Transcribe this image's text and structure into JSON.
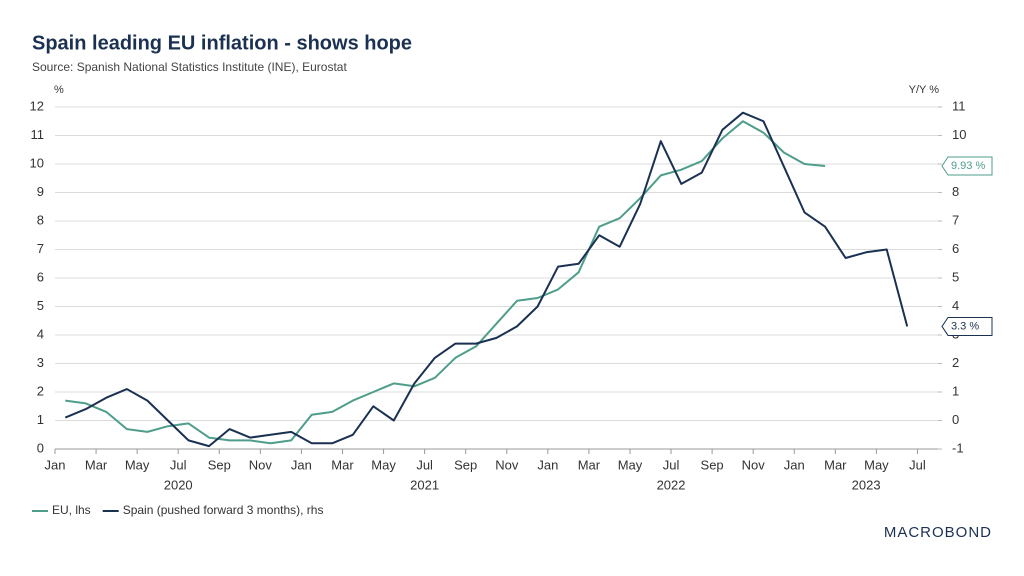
{
  "chart_data": {
    "type": "line",
    "title": "Spain leading EU inflation - shows hope",
    "subtitle": "Source: Spanish National Statistics Institute (INE), Eurostat",
    "y_label": "%",
    "y2_label": "Y/Y %",
    "x": [
      "2020-01",
      "2020-02",
      "2020-03",
      "2020-04",
      "2020-05",
      "2020-06",
      "2020-07",
      "2020-08",
      "2020-09",
      "2020-10",
      "2020-11",
      "2020-12",
      "2021-01",
      "2021-02",
      "2021-03",
      "2021-04",
      "2021-05",
      "2021-06",
      "2021-07",
      "2021-08",
      "2021-09",
      "2021-10",
      "2021-11",
      "2021-12",
      "2022-01",
      "2022-02",
      "2022-03",
      "2022-04",
      "2022-05",
      "2022-06",
      "2022-07",
      "2022-08",
      "2022-09",
      "2022-10",
      "2022-11",
      "2022-12",
      "2023-01",
      "2023-02",
      "2023-03",
      "2023-04",
      "2023-05",
      "2023-06"
    ],
    "xlim": [
      "2020-01",
      "2023-08"
    ],
    "xticks": [
      {
        "value": "2020-01",
        "label": "Jan"
      },
      {
        "value": "2020-03",
        "label": "Mar"
      },
      {
        "value": "2020-05",
        "label": "May"
      },
      {
        "value": "2020-07",
        "label": "Jul"
      },
      {
        "value": "2020-09",
        "label": "Sep"
      },
      {
        "value": "2020-11",
        "label": "Nov"
      },
      {
        "value": "2021-01",
        "label": "Jan"
      },
      {
        "value": "2021-03",
        "label": "Mar"
      },
      {
        "value": "2021-05",
        "label": "May"
      },
      {
        "value": "2021-07",
        "label": "Jul"
      },
      {
        "value": "2021-09",
        "label": "Sep"
      },
      {
        "value": "2021-11",
        "label": "Nov"
      },
      {
        "value": "2022-01",
        "label": "Jan"
      },
      {
        "value": "2022-03",
        "label": "Mar"
      },
      {
        "value": "2022-05",
        "label": "May"
      },
      {
        "value": "2022-07",
        "label": "Jul"
      },
      {
        "value": "2022-09",
        "label": "Sep"
      },
      {
        "value": "2022-11",
        "label": "Nov"
      },
      {
        "value": "2023-01",
        "label": "Jan"
      },
      {
        "value": "2023-03",
        "label": "Mar"
      },
      {
        "value": "2023-05",
        "label": "May"
      },
      {
        "value": "2023-07",
        "label": "Jul"
      }
    ],
    "years": [
      "2020",
      "2021",
      "2022",
      "2023"
    ],
    "ylim": [
      0,
      12
    ],
    "yticks": [
      0,
      1,
      2,
      3,
      4,
      5,
      6,
      7,
      8,
      9,
      10,
      11,
      12
    ],
    "y2lim": [
      -1,
      11
    ],
    "y2ticks": [
      -1,
      0,
      1,
      2,
      3,
      4,
      5,
      6,
      7,
      8,
      9,
      10,
      11
    ],
    "grid": true,
    "series": [
      {
        "name": "EU, lhs",
        "color": "#4f9d8b",
        "values": [
          1.7,
          1.6,
          1.3,
          0.7,
          0.6,
          0.8,
          0.9,
          0.4,
          0.3,
          0.3,
          0.2,
          0.3,
          1.2,
          1.3,
          1.7,
          2.0,
          2.3,
          2.2,
          2.5,
          3.2,
          3.6,
          4.4,
          5.2,
          5.3,
          5.6,
          6.2,
          7.8,
          8.1,
          8.8,
          9.6,
          9.8,
          10.1,
          10.9,
          11.5,
          11.1,
          10.4,
          10.0,
          9.93,
          null,
          null,
          null,
          null
        ],
        "value_labels": [
          null,
          null,
          null,
          null,
          null,
          null,
          null,
          null,
          null,
          null,
          null,
          null,
          null,
          null,
          null,
          null,
          null,
          null,
          null,
          null,
          null,
          null,
          null,
          null,
          null,
          null,
          null,
          null,
          null,
          null,
          null,
          null,
          null,
          null,
          null,
          null,
          null,
          "9.93 %",
          null,
          null,
          null,
          null
        ]
      },
      {
        "name": "Spain (pushed forward 3 months), rhs",
        "color": "#1b3152",
        "axis": "y2",
        "values": [
          0.1,
          0.4,
          0.8,
          1.1,
          0.7,
          0.0,
          -0.7,
          -0.9,
          -0.3,
          -0.6,
          -0.5,
          -0.4,
          -0.8,
          -0.8,
          -0.5,
          0.5,
          0.0,
          1.3,
          2.2,
          2.7,
          2.7,
          2.9,
          3.3,
          4.0,
          5.4,
          5.5,
          6.5,
          6.1,
          7.6,
          9.8,
          8.3,
          8.7,
          10.2,
          10.8,
          10.5,
          8.9,
          7.3,
          6.8,
          5.7,
          5.9,
          6.0,
          3.3
        ],
        "value_labels": [
          null,
          null,
          null,
          null,
          null,
          null,
          null,
          null,
          null,
          null,
          null,
          null,
          null,
          null,
          null,
          null,
          null,
          null,
          null,
          null,
          null,
          null,
          null,
          null,
          null,
          null,
          null,
          null,
          null,
          null,
          null,
          null,
          null,
          null,
          null,
          null,
          null,
          null,
          null,
          null,
          null,
          "3.3 %"
        ]
      }
    ],
    "legend": "bottom-left",
    "logo": "MACROBOND"
  }
}
